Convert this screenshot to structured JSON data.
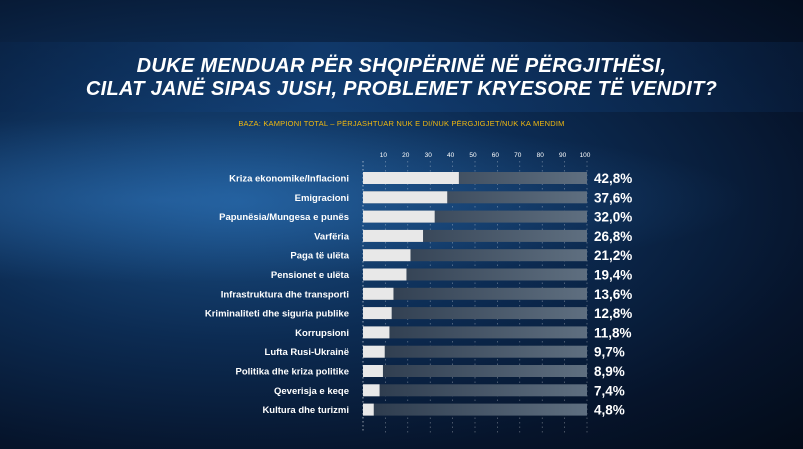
{
  "header": {
    "title_line1": "DUKE MENDUAR PËR SHQIPËRINË NË PËRGJITHËSI,",
    "title_line2": "CILAT JANË SIPAS JUSH, PROBLEMET KRYESORE TË VENDIT?",
    "base_note": "BAZA: KAMPIONI TOTAL – PËRJASHTUAR NUK E DI/NUK PËRGJIGJET/NUK KA MENDIM"
  },
  "colors": {
    "background": "#0c2b52",
    "bar_fill": "#e8e8e8",
    "bar_track": "#5f6f80",
    "base_note": "#f2b90f",
    "text": "#ffffff"
  },
  "chart_data": {
    "type": "bar",
    "orientation": "horizontal",
    "categories": [
      "Kriza ekonomike/Inflacioni",
      "Emigracioni",
      "Papunësia/Mungesa e punës",
      "Varfëria",
      "Paga të ulëta",
      "Pensionet e ulëta",
      "Infrastruktura dhe transporti",
      "Kriminaliteti dhe siguria publike",
      "Korrupsioni",
      "Lufta Rusi-Ukrainë",
      "Politika dhe kriza politike",
      "Qeverisja e keqe",
      "Kultura dhe turizmi"
    ],
    "values": [
      42.8,
      37.6,
      32.0,
      26.8,
      21.2,
      19.4,
      13.6,
      12.8,
      11.8,
      9.7,
      8.9,
      7.4,
      4.8
    ],
    "value_labels": [
      "42,8%",
      "37,6%",
      "32,0%",
      "26,8%",
      "21,2%",
      "19,4%",
      "13,6%",
      "12,8%",
      "11,8%",
      "9,7%",
      "8,9%",
      "7,4%",
      "4,8%"
    ],
    "xticks": [
      "10",
      "20",
      "30",
      "40",
      "50",
      "60",
      "70",
      "80",
      "90",
      "100"
    ],
    "xlim": [
      0,
      100
    ],
    "grid": true
  }
}
